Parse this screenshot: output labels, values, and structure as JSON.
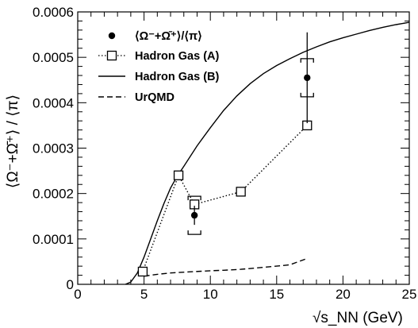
{
  "chart_data": {
    "type": "line",
    "xlabel": "√s_NN (GeV)",
    "ylabel": "⟨Ω⁻+Ω̄⁺⟩ / ⟨π⟩",
    "xlim": [
      0,
      25
    ],
    "ylim": [
      0,
      0.0006
    ],
    "x_ticks": [
      0,
      5,
      10,
      15,
      20,
      25
    ],
    "x_tick_labels": [
      "0",
      "5",
      "10",
      "15",
      "20",
      "25"
    ],
    "y_ticks": [
      0,
      0.0001,
      0.0002,
      0.0003,
      0.0004,
      0.0005,
      0.0006
    ],
    "y_tick_labels": [
      "0",
      "0.0001",
      "0.0002",
      "0.0003",
      "0.0004",
      "0.0005",
      "0.0006"
    ],
    "grid": false,
    "legend_position": "top-left",
    "series": [
      {
        "name": "⟨Ω⁻+Ω̄⁺⟩/⟨π⟩",
        "marker": "filled-circle",
        "color": "#000000",
        "points": [
          {
            "x": 8.8,
            "y": 0.000152,
            "err_lo": 2.1e-05,
            "err_hi": 2.1e-05,
            "sys_lo": 4.2e-05,
            "sys_hi": 4.2e-05
          },
          {
            "x": 17.3,
            "y": 0.000455,
            "err_lo": 0.0001,
            "err_hi": 0.0001,
            "sys_lo": 4.2e-05,
            "sys_hi": 4.2e-05
          }
        ]
      },
      {
        "name": "Hadron Gas (A)",
        "marker": "open-square",
        "line": "dotted",
        "color": "#000000",
        "x": [
          4.9,
          7.6,
          8.8,
          12.3,
          17.3
        ],
        "values": [
          2.8e-05,
          0.00024,
          0.000176,
          0.000204,
          0.00035
        ]
      },
      {
        "name": "Hadron Gas (B)",
        "line": "solid",
        "color": "#000000",
        "x": [
          3.6,
          4.0,
          4.5,
          5.0,
          5.5,
          6.0,
          6.5,
          7.0,
          7.5,
          8.0,
          9.0,
          10.0,
          11.0,
          12.0,
          13.0,
          14.0,
          15.0,
          16.0,
          17.0,
          18.0,
          19.0,
          20.0,
          21.0,
          22.0,
          23.0,
          24.0,
          25.0
        ],
        "values": [
          0.0,
          5e-06,
          2.5e-05,
          6e-05,
          0.0001,
          0.00014,
          0.000178,
          0.000212,
          0.000238,
          0.00026,
          0.000305,
          0.000345,
          0.000383,
          0.000415,
          0.000442,
          0.000464,
          0.000482,
          0.000497,
          0.000511,
          0.000523,
          0.000534,
          0.000543,
          0.000551,
          0.000559,
          0.000566,
          0.000572,
          0.000577
        ]
      },
      {
        "name": "UrQMD",
        "line": "dashed",
        "color": "#000000",
        "x": [
          5.0,
          6.0,
          7.0,
          7.6,
          8.8,
          10.0,
          11.0,
          12.3,
          13.5,
          15.0,
          16.0,
          17.3
        ],
        "values": [
          1.8e-05,
          2.2e-05,
          2.5e-05,
          2.6e-05,
          2.8e-05,
          3e-05,
          3.1e-05,
          3.3e-05,
          3.6e-05,
          4e-05,
          4.3e-05,
          5.7e-05
        ]
      }
    ]
  }
}
